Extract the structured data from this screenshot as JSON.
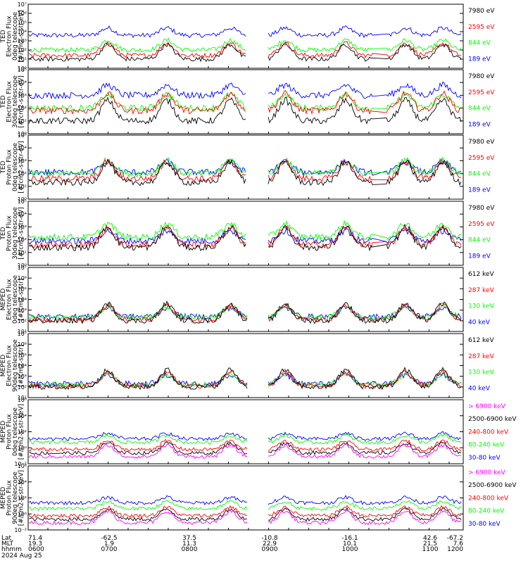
{
  "date_label": "2024 Aug 25",
  "footer": {
    "row_labels": [
      "Lat",
      "MLT",
      "hhmm"
    ],
    "lat": [
      "71.4",
      "-62.5",
      "37.5",
      "-10.8",
      "-16.1",
      "42.6",
      "-67.2"
    ],
    "mlt": [
      "19.3",
      "1.9",
      "11.3",
      "22.9",
      "10.1",
      "21.5",
      "7.6"
    ],
    "hhmm": [
      "0600",
      "0700",
      "0800",
      "0900",
      "1000",
      "1100",
      "1200"
    ]
  },
  "colors": {
    "black": "#000000",
    "red": "#ff0000",
    "green": "#00ff00",
    "blue": "#0000ff",
    "magenta": "#ff00ff"
  },
  "chart_data": [
    {
      "type": "line",
      "ylabel": [
        "TED",
        "Electron Flux",
        "0deg telescope",
        "[#/cm2-s-str-eV]"
      ],
      "y_log_range": [
        0,
        7
      ],
      "y_ticks": [
        "10⁰",
        "10¹",
        "10²",
        "10³",
        "10⁴",
        "10⁵",
        "10⁶",
        "10⁷"
      ],
      "series": [
        {
          "name": "7980 eV",
          "color": "#000000",
          "approx_level": 1.0
        },
        {
          "name": "2595 eV",
          "color": "#ff0000",
          "approx_level": 1.4
        },
        {
          "name": "844 eV",
          "color": "#00ff00",
          "approx_level": 2.0
        },
        {
          "name": "189 eV",
          "color": "#0000ff",
          "approx_level": 3.6
        }
      ]
    },
    {
      "type": "line",
      "ylabel": [
        "TED",
        "Electron Flux",
        "30deg telescope",
        "[#/cm2-s-str-eV]"
      ],
      "y_log_range": [
        0,
        5
      ],
      "y_ticks": [
        "10⁰",
        "10¹",
        "10²",
        "10³",
        "10⁴",
        "10⁵"
      ],
      "series": [
        {
          "name": "7980 eV",
          "color": "#000000",
          "approx_level": 1.0
        },
        {
          "name": "2595 eV",
          "color": "#ff0000",
          "approx_level": 1.8
        },
        {
          "name": "844 eV",
          "color": "#00ff00",
          "approx_level": 2.0
        },
        {
          "name": "189 eV",
          "color": "#0000ff",
          "approx_level": 3.0
        }
      ]
    },
    {
      "type": "line",
      "ylabel": [
        "TED",
        "Proton Flux",
        "0deg telescope",
        "[#/cm2-s-str-eV]"
      ],
      "y_log_range": [
        0,
        5
      ],
      "y_ticks": [
        "10⁰",
        "10¹",
        "10²",
        "10³",
        "10⁴",
        "10⁵"
      ],
      "series": [
        {
          "name": "7980 eV",
          "color": "#000000",
          "approx_level": 1.3
        },
        {
          "name": "2595 eV",
          "color": "#ff0000",
          "approx_level": 1.6
        },
        {
          "name": "844 eV",
          "color": "#00ff00",
          "approx_level": 2.0
        },
        {
          "name": "189 eV",
          "color": "#0000ff",
          "approx_level": 2.1
        }
      ]
    },
    {
      "type": "line",
      "ylabel": [
        "TED",
        "Proton Flux",
        "30deg telescope",
        "[#/cm2-s-str-eV]"
      ],
      "y_log_range": [
        0,
        5
      ],
      "y_ticks": [
        "10⁰",
        "10¹",
        "10²",
        "10³",
        "10⁴",
        "10⁵"
      ],
      "series": [
        {
          "name": "7980 eV",
          "color": "#000000",
          "approx_level": 1.4
        },
        {
          "name": "2595 eV",
          "color": "#ff0000",
          "approx_level": 1.6
        },
        {
          "name": "844 eV",
          "color": "#00ff00",
          "approx_level": 2.2
        },
        {
          "name": "189 eV",
          "color": "#0000ff",
          "approx_level": 1.9
        }
      ]
    },
    {
      "type": "line",
      "ylabel": [
        "MEPED",
        "Electron Flux",
        "0deg telescope",
        "[#/cm2-s-str]"
      ],
      "y_log_range": [
        1,
        7
      ],
      "y_ticks": [
        "10¹",
        "10²",
        "10³",
        "10⁴",
        "10⁵",
        "10⁶",
        "10⁷"
      ],
      "series": [
        {
          "name": "612 keV",
          "color": "#000000",
          "approx_level": 2.0
        },
        {
          "name": "287 keV",
          "color": "#ff0000",
          "approx_level": 2.1
        },
        {
          "name": "130 keV",
          "color": "#00ff00",
          "approx_level": 2.3
        },
        {
          "name": "40 keV",
          "color": "#0000ff",
          "approx_level": 2.4
        }
      ]
    },
    {
      "type": "line",
      "ylabel": [
        "MEPED",
        "Electron Flux",
        "90deg telescope",
        "[#/cm2-s-str]"
      ],
      "y_log_range": [
        1,
        7
      ],
      "y_ticks": [
        "10¹",
        "10²",
        "10³",
        "10⁴",
        "10⁵",
        "10⁶",
        "10⁷"
      ],
      "series": [
        {
          "name": "612 keV",
          "color": "#000000",
          "approx_level": 2.0
        },
        {
          "name": "287 keV",
          "color": "#ff0000",
          "approx_level": 2.1
        },
        {
          "name": "130 keV",
          "color": "#00ff00",
          "approx_level": 2.2
        },
        {
          "name": "40 keV",
          "color": "#0000ff",
          "approx_level": 2.3
        }
      ]
    },
    {
      "type": "line",
      "ylabel": [
        "MEPED",
        "Proton Flux",
        "0deg telescope",
        "[#/cm2-s-str-keV]"
      ],
      "y_log_range": [
        -3,
        6
      ],
      "y_ticks": [
        "10⁻²",
        "10⁰",
        "10²",
        "10⁴",
        "10⁶"
      ],
      "series": [
        {
          "name": "> 6900 keV",
          "color": "#ff00ff",
          "approx_level": -2.0
        },
        {
          "name": "2500-6900 keV",
          "color": "#000000",
          "approx_level": -1.5
        },
        {
          "name": "240-800 keV",
          "color": "#ff0000",
          "approx_level": -1.0
        },
        {
          "name": "80-240 keV",
          "color": "#00ff00",
          "approx_level": 0.0
        },
        {
          "name": "30-80 keV",
          "color": "#0000ff",
          "approx_level": 0.5
        }
      ]
    },
    {
      "type": "line",
      "ylabel": [
        "MEPED",
        "Proton Flux",
        "90deg telescope",
        "[#/cm2-s-str-keV]"
      ],
      "y_log_range": [
        -3,
        6
      ],
      "y_ticks": [
        "10⁻²",
        "10⁰",
        "10²",
        "10⁴",
        "10⁶"
      ],
      "series": [
        {
          "name": "> 6900 keV",
          "color": "#ff00ff",
          "approx_level": -2.0
        },
        {
          "name": "2500-6900 keV",
          "color": "#000000",
          "approx_level": -1.5
        },
        {
          "name": "240-800 keV",
          "color": "#ff0000",
          "approx_level": -1.0
        },
        {
          "name": "80-240 keV",
          "color": "#00ff00",
          "approx_level": 0.0
        },
        {
          "name": "30-80 keV",
          "color": "#0000ff",
          "approx_level": 0.8
        }
      ]
    }
  ]
}
